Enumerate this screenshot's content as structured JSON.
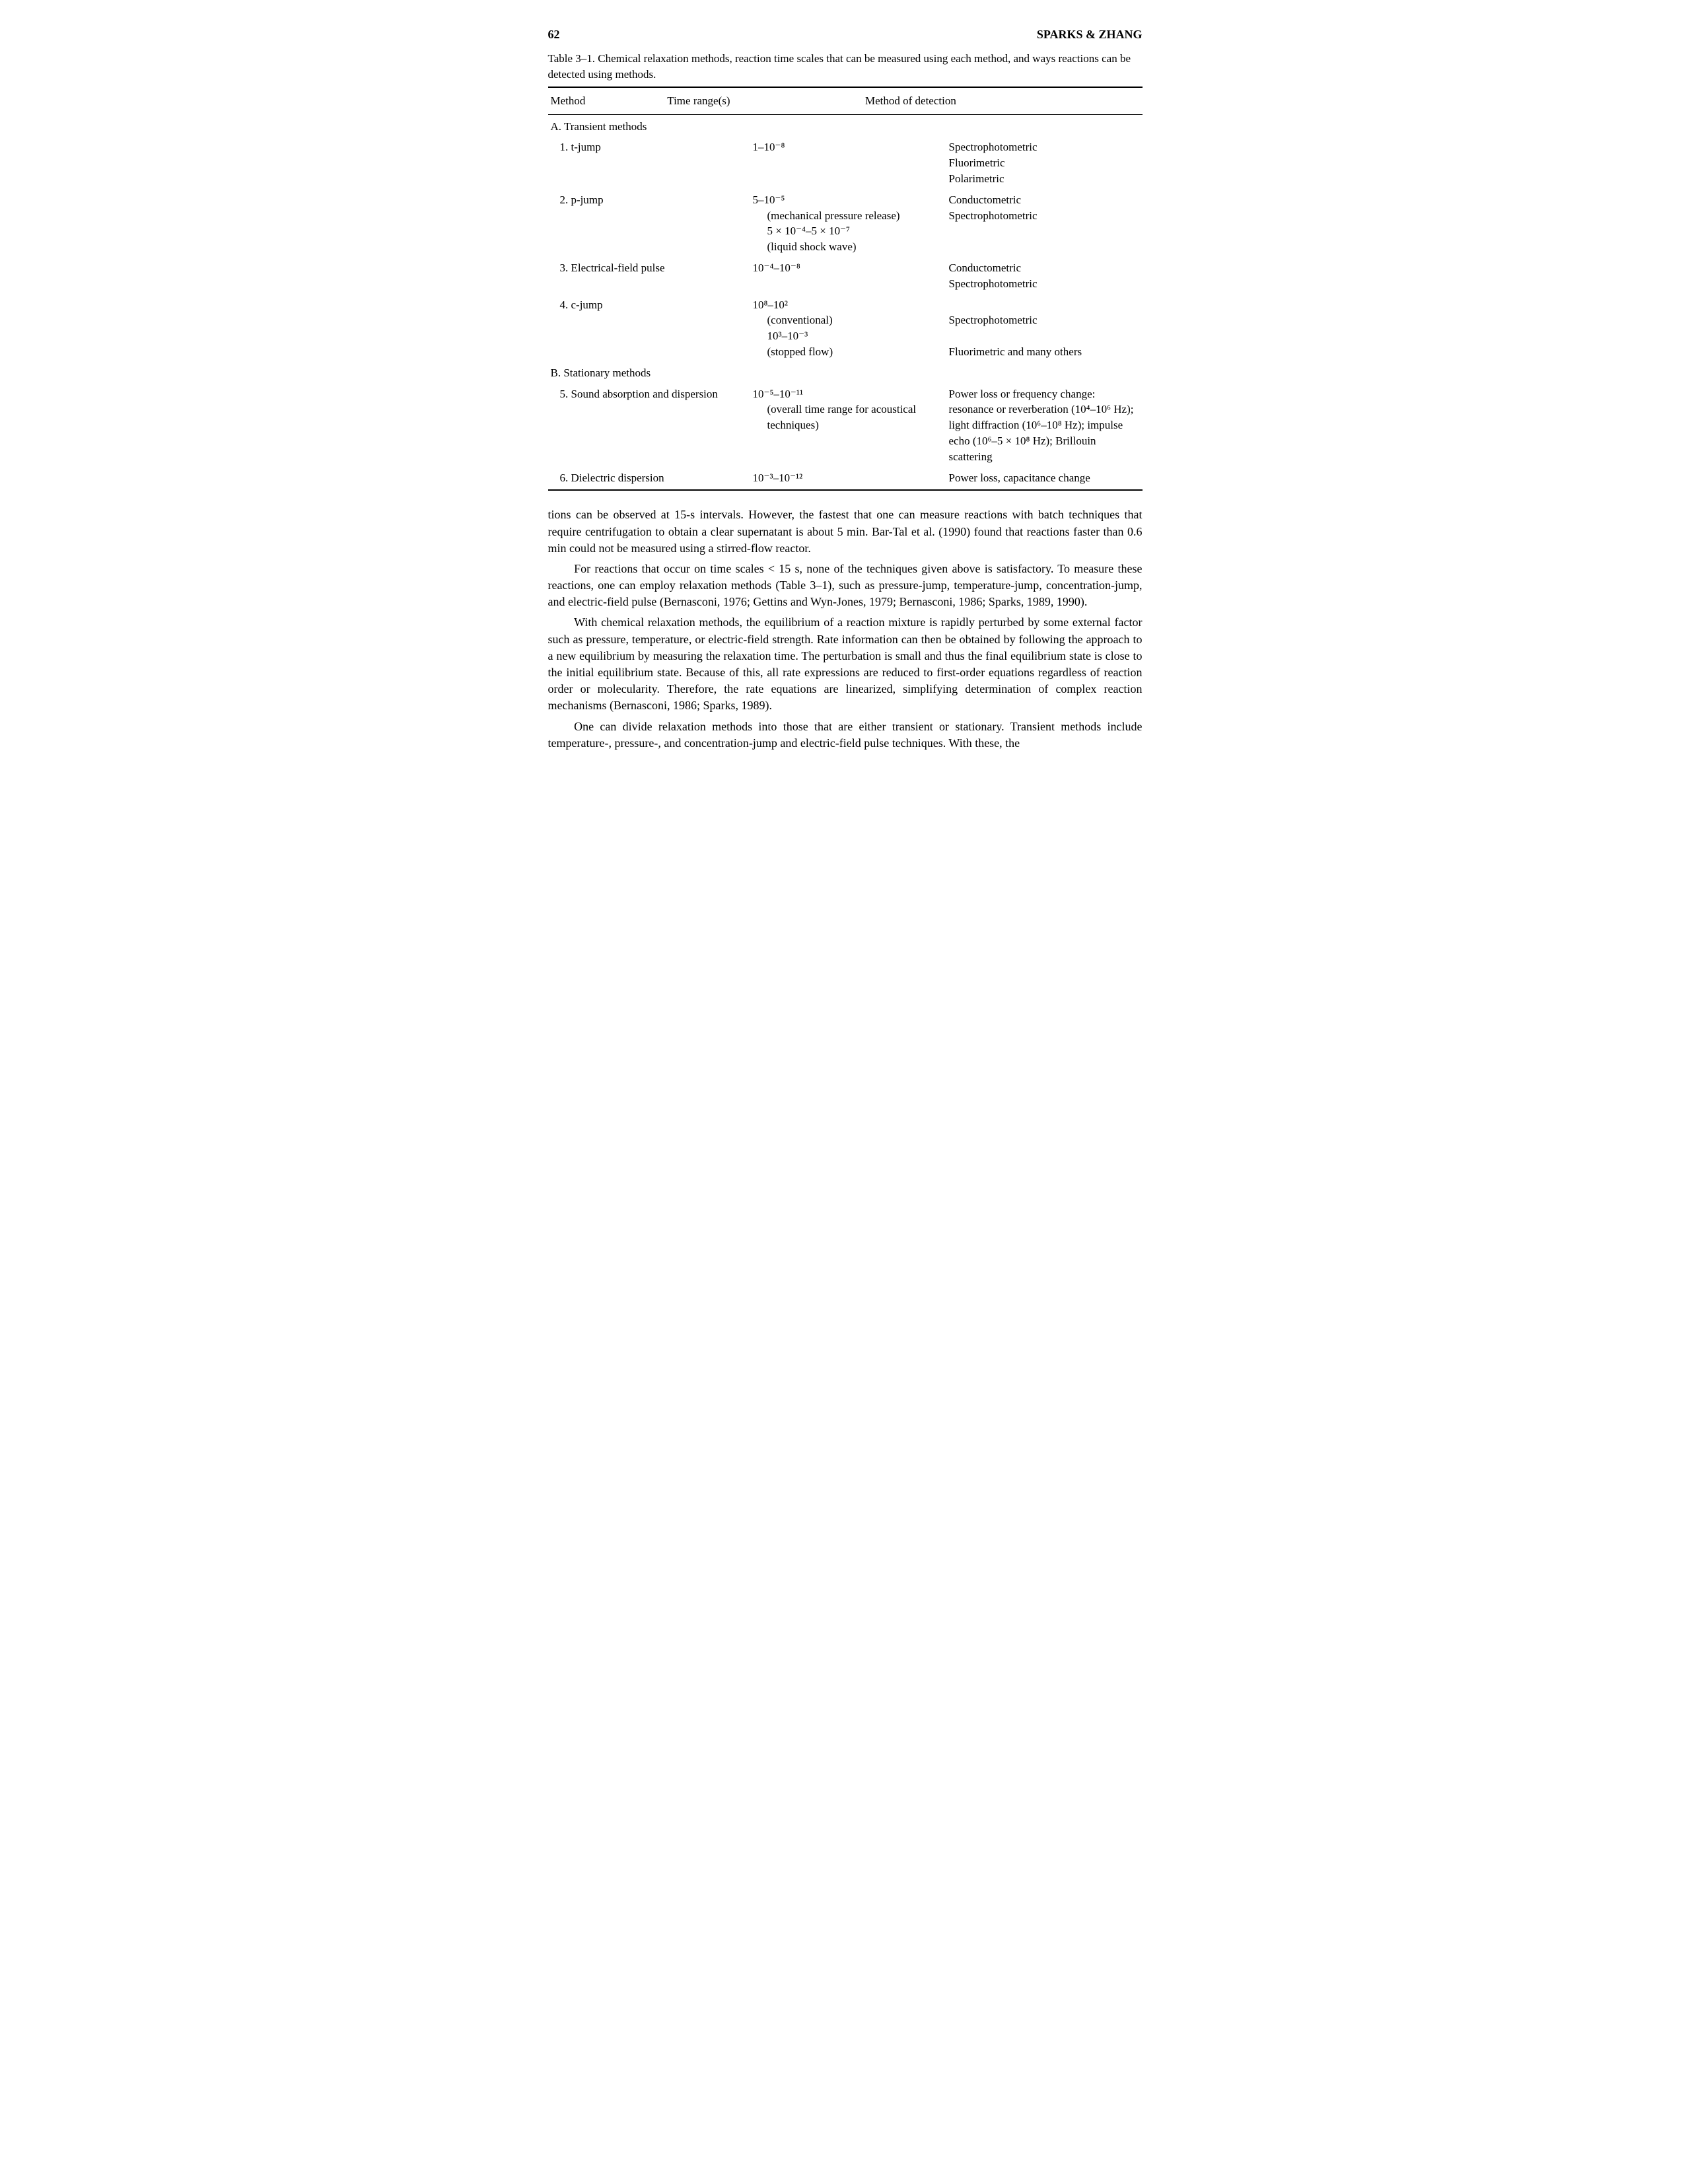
{
  "header": {
    "page_number": "62",
    "running_head": "SPARKS & ZHANG"
  },
  "table": {
    "caption": "Table 3–1. Chemical relaxation methods, reaction time scales that can be measured using each method, and ways reactions can be detected using methods.",
    "columns": [
      "Method",
      "Time range(s)",
      "Method of detection"
    ],
    "sections": [
      {
        "label": "A. Transient methods",
        "rows": [
          {
            "method": "1. t-jump",
            "time": "1–10⁻⁸",
            "detection": "Spectrophotometric\nFluorimetric\nPolarimetric"
          },
          {
            "method": "2. p-jump",
            "time": "5–10⁻⁵\n(mechanical pressure release)\n5 × 10⁻⁴–5 × 10⁻⁷\n(liquid shock wave)",
            "detection": "Conductometric\nSpectrophotometric"
          },
          {
            "method": "3. Electrical-field pulse",
            "time": "10⁻⁴–10⁻⁸",
            "detection": "Conductometric\nSpectrophotometric"
          },
          {
            "method": "4. c-jump",
            "time": "10⁸–10²\n(conventional)\n10³–10⁻³\n(stopped flow)",
            "detection": "\nSpectrophotometric\n\nFluorimetric and many others"
          }
        ]
      },
      {
        "label": "B. Stationary methods",
        "rows": [
          {
            "method": "5. Sound absorption and dispersion",
            "time": "10⁻⁵–10⁻¹¹\n(overall time range for acoustical techniques)",
            "detection": "Power loss or frequency change: resonance or reverberation (10⁴–10⁶ Hz); light diffraction (10⁶–10⁸ Hz); impulse echo (10⁶–5 × 10⁸ Hz); Brillouin scattering"
          },
          {
            "method": "6. Dielectric dispersion",
            "time": "10⁻³–10⁻¹²",
            "detection": "Power loss, capacitance change"
          }
        ]
      }
    ]
  },
  "paragraphs": [
    "tions can be observed at 15-s intervals. However, the fastest that one can measure reactions with batch techniques that require centrifugation to obtain a clear supernatant is about 5 min. Bar-Tal et al. (1990) found that reactions faster than 0.6 min could not be measured using a stirred-flow reactor.",
    "For reactions that occur on time scales < 15 s, none of the techniques given above is satisfactory. To measure these reactions, one can employ relaxation methods (Table 3–1), such as pressure-jump, temperature-jump, concentration-jump, and electric-field pulse (Bernasconi, 1976; Gettins and Wyn-Jones, 1979; Bernasconi, 1986; Sparks, 1989, 1990).",
    "With chemical relaxation methods, the equilibrium of a reaction mixture is rapidly perturbed by some external factor such as pressure, temperature, or electric-field strength. Rate information can then be obtained by following the approach to a new equilibrium by measuring the relaxation time. The perturbation is small and thus the final equilibrium state is close to the initial equilibrium state. Because of this, all rate expressions are reduced to first-order equations regardless of reaction order or molecularity. Therefore, the rate equations are linearized, simplifying determination of complex reaction mechanisms (Bernasconi, 1986; Sparks, 1989).",
    "One can divide relaxation methods into those that are either transient or stationary. Transient methods include temperature-, pressure-, and concentration-jump and electric-field pulse techniques. With these, the"
  ]
}
